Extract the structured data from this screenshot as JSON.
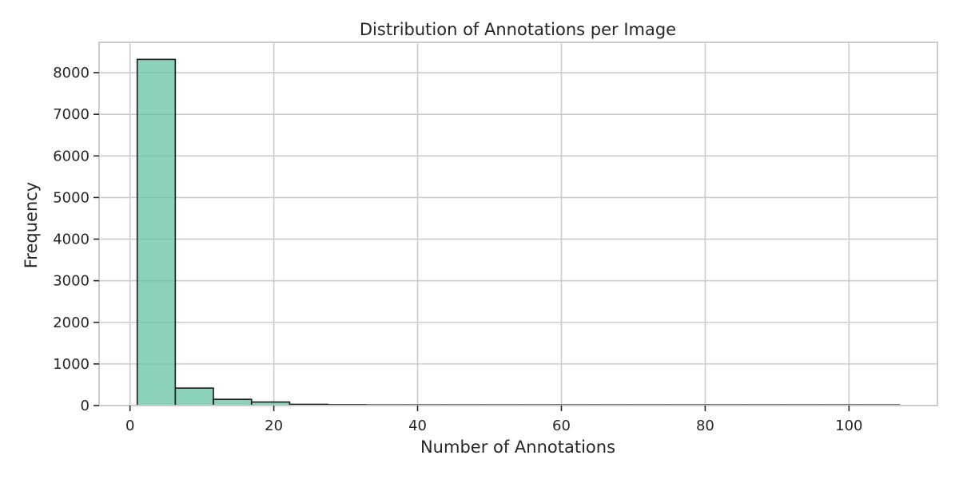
{
  "chart_data": {
    "type": "bar",
    "title": "Distribution of Annotations per Image",
    "xlabel": "Number of Annotations",
    "ylabel": "Frequency",
    "xlim": [
      -4.3,
      112.3
    ],
    "ylim": [
      0,
      8730
    ],
    "xticks": [
      0,
      20,
      40,
      60,
      80,
      100
    ],
    "yticks": [
      0,
      1000,
      2000,
      3000,
      4000,
      5000,
      6000,
      7000,
      8000
    ],
    "bin_edges": [
      1,
      6.3,
      11.6,
      16.9,
      22.2,
      27.5,
      32.8,
      38.1,
      43.4,
      48.7,
      54,
      59.3,
      64.6,
      69.9,
      75.2,
      80.5,
      85.8,
      91.1,
      96.4,
      101.7,
      107
    ],
    "values": [
      8320,
      420,
      150,
      85,
      30,
      20,
      15,
      8,
      5,
      3,
      2,
      2,
      1,
      1,
      1,
      1,
      1,
      1,
      0,
      1
    ],
    "grid": true,
    "legend": "none",
    "colors": {
      "bar_fill": "#66c2a5",
      "bar_edge": "#1a1a1a",
      "grid": "#cccccc",
      "spine": "#cccccc",
      "text": "#262626"
    }
  }
}
